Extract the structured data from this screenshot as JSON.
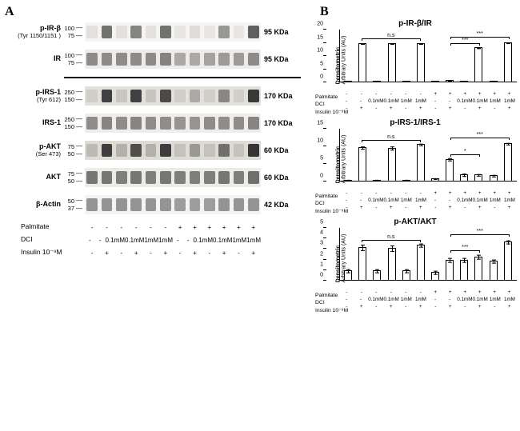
{
  "panelA": {
    "letter": "A",
    "blots": [
      {
        "label": "p-IR-β",
        "sublabel": "(Tyr 1150/1151 )",
        "mw": [
          "100",
          "75"
        ],
        "kd": "95 KDa",
        "lane_intensities": [
          0.05,
          0.65,
          0.05,
          0.55,
          0.05,
          0.65,
          0.02,
          0.08,
          0.02,
          0.45,
          0.02,
          0.75
        ],
        "band_color": "#3a3a3a",
        "strip_bg": "#f5f4f2"
      },
      {
        "label": "IR",
        "sublabel": "",
        "mw": [
          "100",
          "75"
        ],
        "kd": "95 KDa",
        "lane_intensities": [
          0.6,
          0.6,
          0.6,
          0.6,
          0.6,
          0.65,
          0.4,
          0.4,
          0.45,
          0.5,
          0.5,
          0.6
        ],
        "band_color": "#595959",
        "strip_bg": "#eeece8"
      }
    ],
    "divider_after": 2,
    "blots2": [
      {
        "label": "p-IRS-1",
        "sublabel": "(Tyr 612)",
        "mw": [
          "250",
          "150"
        ],
        "kd": "170 KDa",
        "lane_intensities": [
          0.05,
          0.85,
          0.1,
          0.85,
          0.1,
          0.8,
          0.05,
          0.25,
          0.05,
          0.45,
          0.05,
          0.9
        ],
        "band_color": "#2f2f2f",
        "strip_bg": "#e3e0db"
      },
      {
        "label": "IRS-1",
        "sublabel": "",
        "mw": [
          "250",
          "150"
        ],
        "kd": "170 KDa",
        "lane_intensities": [
          0.55,
          0.6,
          0.55,
          0.6,
          0.55,
          0.55,
          0.5,
          0.5,
          0.55,
          0.55,
          0.55,
          0.6
        ],
        "band_color": "#4d4d4d",
        "strip_bg": "#efedea"
      },
      {
        "label": "p-AKT",
        "sublabel": "(Ser 473)",
        "mw": [
          "75",
          "50"
        ],
        "kd": "60 KDa",
        "lane_intensities": [
          0.15,
          0.9,
          0.2,
          0.8,
          0.2,
          0.9,
          0.1,
          0.35,
          0.1,
          0.6,
          0.1,
          0.95
        ],
        "band_color": "#353535",
        "strip_bg": "#dedad4"
      },
      {
        "label": "AKT",
        "sublabel": "",
        "mw": [
          "75",
          "50"
        ],
        "kd": "60 KDa",
        "lane_intensities": [
          0.65,
          0.65,
          0.6,
          0.65,
          0.6,
          0.65,
          0.6,
          0.6,
          0.6,
          0.65,
          0.6,
          0.7
        ],
        "band_color": "#454545",
        "strip_bg": "#ecebe8"
      },
      {
        "label": "β-Actin",
        "sublabel": "",
        "mw": [
          "50",
          "37"
        ],
        "kd": "42 KDa",
        "lane_intensities": [
          0.55,
          0.55,
          0.55,
          0.55,
          0.55,
          0.55,
          0.5,
          0.5,
          0.5,
          0.55,
          0.55,
          0.55
        ],
        "band_color": "#555555",
        "strip_bg": "#f4f3f1"
      }
    ],
    "conditions": {
      "rows": [
        {
          "label": "Palmitate",
          "vals": [
            "-",
            "-",
            "-",
            "-",
            "-",
            "-",
            "+",
            "+",
            "+",
            "+",
            "+",
            "+"
          ]
        },
        {
          "label": "DCI",
          "vals": [
            "-",
            "-",
            "0.1mM",
            "0.1mM",
            "1mM",
            "1mM",
            "-",
            "-",
            "0.1mM",
            "0.1mM",
            "1mM",
            "1mM"
          ]
        },
        {
          "label": "Insulin 10⁻⁹M",
          "vals": [
            "-",
            "+",
            "-",
            "+",
            "-",
            "+",
            "-",
            "+",
            "-",
            "+",
            "-",
            "+"
          ]
        }
      ]
    }
  },
  "panelB": {
    "letter": "B",
    "y_axis_title": "Densitometric",
    "y_axis_unit": "Arbitrary Units (AU)",
    "charts": [
      {
        "title": "p-IR-β/IR",
        "ymax": 20,
        "yticks": [
          0,
          5,
          10,
          15,
          20
        ],
        "bars": [
          {
            "v": 0.4,
            "e": 0.2,
            "h": false
          },
          {
            "v": 15,
            "e": 0.3,
            "h": false
          },
          {
            "v": 0.4,
            "e": 0.2,
            "h": false
          },
          {
            "v": 14.8,
            "e": 0.3,
            "h": false
          },
          {
            "v": 0.4,
            "e": 0.2,
            "h": false
          },
          {
            "v": 15,
            "e": 0.3,
            "h": false
          },
          {
            "v": 0.4,
            "e": 0.2,
            "h": true
          },
          {
            "v": 0.8,
            "e": 0.3,
            "h": true
          },
          {
            "v": 0.4,
            "e": 0.2,
            "h": true
          },
          {
            "v": 13.2,
            "e": 0.4,
            "h": true
          },
          {
            "v": 0.4,
            "e": 0.2,
            "h": true
          },
          {
            "v": 15.2,
            "e": 0.3,
            "h": true
          }
        ],
        "sigs": [
          {
            "label": "n.s",
            "from": 1,
            "to": 5,
            "y": 16.5
          },
          {
            "label": "***",
            "from": 7,
            "to": 9,
            "y": 14.5
          },
          {
            "label": "***",
            "from": 7,
            "to": 11,
            "y": 17
          }
        ]
      },
      {
        "title": "p-IRS-1/IRS-1",
        "ymax": 15,
        "yticks": [
          0,
          5,
          10,
          15
        ],
        "bars": [
          {
            "v": 0.5,
            "e": 0.2,
            "h": false
          },
          {
            "v": 9.8,
            "e": 0.5,
            "h": false
          },
          {
            "v": 0.5,
            "e": 0.2,
            "h": false
          },
          {
            "v": 9.6,
            "e": 0.5,
            "h": false
          },
          {
            "v": 0.5,
            "e": 0.2,
            "h": false
          },
          {
            "v": 10.6,
            "e": 0.4,
            "h": false
          },
          {
            "v": 1.0,
            "e": 0.2,
            "h": true
          },
          {
            "v": 6.4,
            "e": 0.4,
            "h": true
          },
          {
            "v": 2.0,
            "e": 0.5,
            "h": true
          },
          {
            "v": 2.0,
            "e": 0.4,
            "h": true
          },
          {
            "v": 1.8,
            "e": 0.4,
            "h": true
          },
          {
            "v": 10.8,
            "e": 0.4,
            "h": true
          }
        ],
        "sigs": [
          {
            "label": "n.s",
            "from": 1,
            "to": 5,
            "y": 11.5
          },
          {
            "label": "*",
            "from": 7,
            "to": 9,
            "y": 7.5
          },
          {
            "label": "***",
            "from": 7,
            "to": 11,
            "y": 12.2
          }
        ]
      },
      {
        "title": "p-AKT/AKT",
        "ymax": 5,
        "yticks": [
          0,
          1,
          2,
          3,
          4,
          5
        ],
        "bars": [
          {
            "v": 1.0,
            "e": 0.2,
            "h": false
          },
          {
            "v": 3.2,
            "e": 0.3,
            "h": false
          },
          {
            "v": 1.0,
            "e": 0.2,
            "h": false
          },
          {
            "v": 3.1,
            "e": 0.3,
            "h": false
          },
          {
            "v": 1.0,
            "e": 0.2,
            "h": false
          },
          {
            "v": 3.4,
            "e": 0.2,
            "h": false
          },
          {
            "v": 0.8,
            "e": 0.2,
            "h": true
          },
          {
            "v": 2.0,
            "e": 0.2,
            "h": true
          },
          {
            "v": 2.0,
            "e": 0.2,
            "h": true
          },
          {
            "v": 2.3,
            "e": 0.2,
            "h": true
          },
          {
            "v": 1.9,
            "e": 0.2,
            "h": true
          },
          {
            "v": 3.7,
            "e": 0.2,
            "h": true
          }
        ],
        "sigs": [
          {
            "label": "n.s",
            "from": 1,
            "to": 5,
            "y": 3.8
          },
          {
            "label": "***",
            "from": 7,
            "to": 9,
            "y": 2.8
          },
          {
            "label": "***",
            "from": 7,
            "to": 11,
            "y": 4.3
          }
        ]
      }
    ],
    "conditions": {
      "rows": [
        {
          "label": "Palmitate",
          "vals": [
            "-",
            "-",
            "-",
            "-",
            "-",
            "-",
            "+",
            "+",
            "+",
            "+",
            "+",
            "+"
          ]
        },
        {
          "label": "DCI",
          "vals": [
            "-",
            "-",
            "0.1mM",
            "0.1mM",
            "1mM",
            "1mM",
            "-",
            "-",
            "0.1mM",
            "0.1mM",
            "1mM",
            "1mM"
          ]
        },
        {
          "label": "Insulin 10⁻⁹M",
          "vals": [
            "-",
            "+",
            "-",
            "+",
            "-",
            "+",
            "-",
            "+",
            "-",
            "+",
            "-",
            "+"
          ]
        }
      ]
    },
    "bar_fill": "#ffffff",
    "bar_border": "#000000"
  }
}
